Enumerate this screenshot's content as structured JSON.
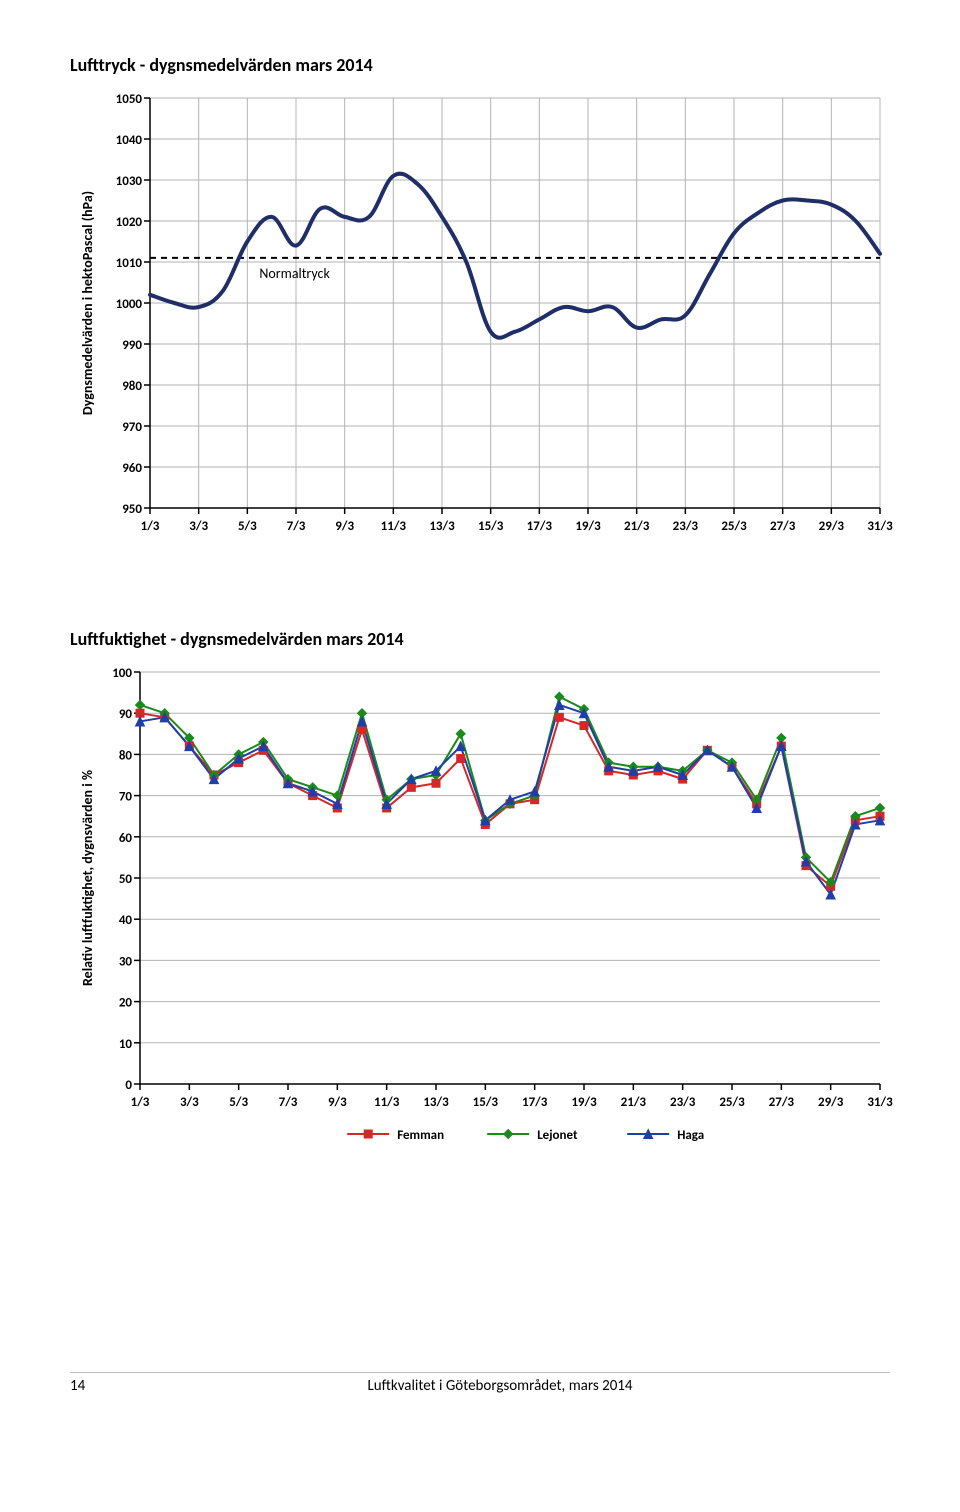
{
  "page": {
    "number": "14",
    "footer_text": "Luftkvalitet i Göteborgsområdet, mars 2014"
  },
  "chart1": {
    "title": "Lufttryck - dygnsmedelvärden mars 2014",
    "type": "line",
    "ylabel": "Dygnsmedelvärden i hektoPascal (hPa)",
    "ylabel_fontsize": 14,
    "ylim": [
      950,
      1050
    ],
    "ytick_step": 10,
    "yticks": [
      950,
      960,
      970,
      980,
      990,
      1000,
      1010,
      1020,
      1030,
      1040,
      1050
    ],
    "x_categories": [
      "1/3",
      "3/3",
      "5/3",
      "7/3",
      "9/3",
      "11/3",
      "13/3",
      "15/3",
      "17/3",
      "19/3",
      "21/3",
      "23/3",
      "25/3",
      "27/3",
      "29/3",
      "31/3"
    ],
    "x_days": 31,
    "line_color": "#1f2e66",
    "line_width": 4,
    "grid_color": "#b3b3b3",
    "background_color": "#ffffff",
    "tick_fontsize": 13,
    "normal_line_y": 1011,
    "normal_line_color": "#000000",
    "normal_line_dash": "6,5",
    "normal_label": "Normaltryck",
    "normal_label_fontsize": 14,
    "values": [
      1002,
      1000,
      999,
      1003,
      1015,
      1021,
      1014,
      1023,
      1021,
      1021,
      1031,
      1029,
      1021,
      1010,
      993,
      993,
      996,
      999,
      998,
      999,
      994,
      996,
      997,
      1007,
      1017,
      1022,
      1025,
      1025,
      1024,
      1020,
      1012
    ]
  },
  "chart2": {
    "title": "Luftfuktighet - dygnsmedelvärden mars 2014",
    "type": "line",
    "ylabel": "Relativ luftfuktighet, dygnsvärden i %",
    "ylabel_fontsize": 14,
    "ylim": [
      0,
      100
    ],
    "ytick_step": 10,
    "yticks": [
      0,
      10,
      20,
      30,
      40,
      50,
      60,
      70,
      80,
      90,
      100
    ],
    "x_categories": [
      "1/3",
      "3/3",
      "5/3",
      "7/3",
      "9/3",
      "11/3",
      "13/3",
      "15/3",
      "17/3",
      "19/3",
      "21/3",
      "23/3",
      "25/3",
      "27/3",
      "29/3",
      "31/3"
    ],
    "x_days": 31,
    "grid_color": "#b3b3b3",
    "background_color": "#ffffff",
    "tick_fontsize": 13,
    "legend_fontsize": 13,
    "series": [
      {
        "name": "Femman",
        "color": "#d62728",
        "marker": "square",
        "marker_size": 8,
        "line_width": 2,
        "values": [
          90,
          89,
          82,
          75,
          78,
          81,
          73,
          70,
          67,
          86,
          67,
          72,
          73,
          79,
          63,
          68,
          69,
          89,
          87,
          76,
          75,
          76,
          74,
          81,
          77,
          68,
          82,
          53,
          48,
          64,
          65
        ]
      },
      {
        "name": "Lejonet",
        "color": "#1a8a1a",
        "marker": "diamond",
        "marker_size": 9,
        "line_width": 2,
        "values": [
          92,
          90,
          84,
          75,
          80,
          83,
          74,
          72,
          70,
          90,
          69,
          74,
          75,
          85,
          64,
          68,
          70,
          94,
          91,
          78,
          77,
          77,
          76,
          81,
          78,
          69,
          84,
          55,
          49,
          65,
          67
        ]
      },
      {
        "name": "Haga",
        "color": "#1f3ea8",
        "marker": "triangle",
        "marker_size": 9,
        "line_width": 2,
        "values": [
          88,
          89,
          82,
          74,
          79,
          82,
          73,
          71,
          68,
          88,
          68,
          74,
          76,
          82,
          64,
          69,
          71,
          92,
          90,
          77,
          76,
          77,
          75,
          81,
          77,
          67,
          82,
          54,
          46,
          63,
          64
        ]
      }
    ]
  }
}
